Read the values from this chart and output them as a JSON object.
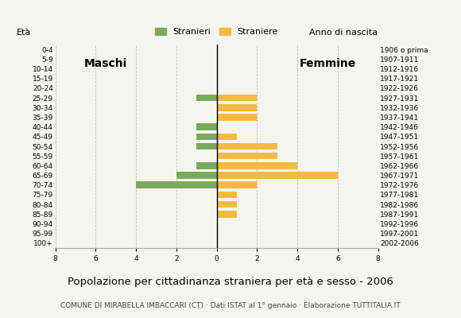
{
  "age_groups": [
    "100+",
    "95-99",
    "90-94",
    "85-89",
    "80-84",
    "75-79",
    "70-74",
    "65-69",
    "60-64",
    "55-59",
    "50-54",
    "45-49",
    "40-44",
    "35-39",
    "30-34",
    "25-29",
    "20-24",
    "15-19",
    "10-14",
    "5-9",
    "0-4"
  ],
  "birth_years": [
    "1906 o prima",
    "1907-1911",
    "1912-1916",
    "1917-1921",
    "1922-1926",
    "1927-1931",
    "1932-1936",
    "1937-1941",
    "1942-1946",
    "1947-1951",
    "1952-1956",
    "1957-1961",
    "1962-1966",
    "1967-1971",
    "1972-1976",
    "1977-1981",
    "1982-1986",
    "1987-1991",
    "1992-1996",
    "1997-2001",
    "2002-2006"
  ],
  "males": [
    0,
    0,
    0,
    0,
    0,
    1,
    0,
    0,
    1,
    1,
    1,
    0,
    1,
    2,
    4,
    0,
    0,
    0,
    0,
    0,
    0
  ],
  "females": [
    0,
    0,
    0,
    0,
    0,
    2,
    2,
    2,
    0,
    1,
    3,
    3,
    4,
    6,
    2,
    1,
    1,
    1,
    0,
    0,
    0
  ],
  "male_color": "#7aaa5c",
  "female_color": "#f5b942",
  "bar_height": 0.7,
  "xlim": 8,
  "title": "Popolazione per cittadinanza straniera per età e sesso - 2006",
  "subtitle": "COMUNE DI MIRABELLA IMBACCARI (CT) · Dati ISTAT al 1° gennaio · Elaborazione TUTTITALIA.IT",
  "legend_male": "Stranieri",
  "legend_female": "Straniere",
  "label_maschi": "Maschi",
  "label_femmine": "Femmine",
  "label_eta": "Età",
  "label_anno": "Anno di nascita",
  "background_color": "#f5f5f0",
  "grid_color": "#bbbbbb",
  "title_fontsize": 9.5,
  "subtitle_fontsize": 6.5,
  "tick_fontsize": 6.5,
  "label_fontsize": 8
}
